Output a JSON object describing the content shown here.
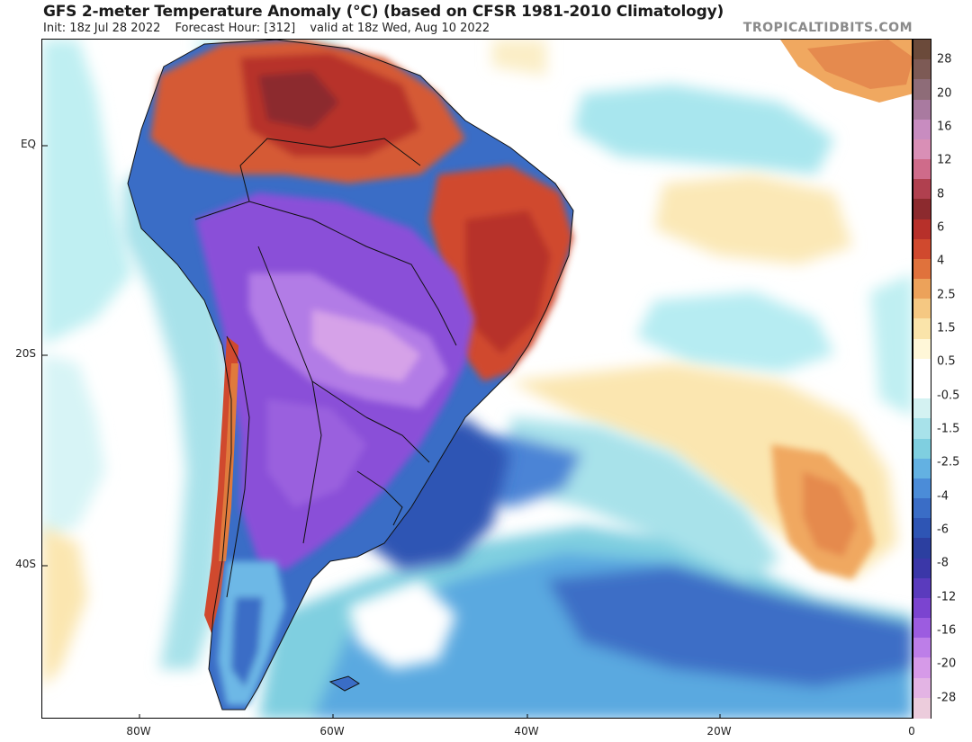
{
  "header": {
    "title": "GFS 2-meter Temperature Anomaly (°C) (based on CFSR 1981-2010 Climatology)",
    "init": "Init: 18z Jul 28 2022",
    "forecast_hour": "Forecast Hour: [312]",
    "valid": "valid at 18z Wed, Aug 10 2022",
    "brand": "TROPICALTIDBITS.COM"
  },
  "axes": {
    "lat_labels": [
      "EQ",
      "20S",
      "40S"
    ],
    "lon_labels": [
      "80W",
      "60W",
      "40W",
      "20W",
      "0"
    ]
  },
  "colorbar": {
    "labels": [
      "28",
      "20",
      "16",
      "12",
      "8",
      "6",
      "4",
      "2.5",
      "1.5",
      "0.5",
      "-0.5",
      "-1.5",
      "-2.5",
      "-4",
      "-6",
      "-8",
      "-12",
      "-16",
      "-20",
      "-28"
    ],
    "colors": [
      "#6b4a3a",
      "#7d5a55",
      "#8e6c78",
      "#a97aa0",
      "#c88cc0",
      "#d98fb6",
      "#cf6b8a",
      "#b0404f",
      "#8c2a2e",
      "#b7302a",
      "#d0492e",
      "#e0723c",
      "#eca25a",
      "#f5c882",
      "#fae4aa",
      "#fff7d8",
      "#ffffff",
      "#ffffff",
      "#d4f2f2",
      "#a8e2ea",
      "#7fcfe0",
      "#63b1e2",
      "#4b8cd8",
      "#3a6dc6",
      "#2e55b4",
      "#2c3fa0",
      "#3b37a8",
      "#5a3bbd",
      "#7b44d0",
      "#9c5ce0",
      "#bd7ee8",
      "#d69ae8",
      "#e3b4e4",
      "#ecccdc"
    ]
  },
  "map": {
    "colors": {
      "ocean": "#ffffff",
      "pale_cyan": "#bfeff2",
      "cyan": "#8fdcea",
      "light_blue": "#6db8e6",
      "blue": "#4b84d6",
      "deep_blue": "#3556b6",
      "purple": "#8a50d8",
      "light_purple": "#b27ce6",
      "pink_purple": "#d6a2e8",
      "warm_orange": "#e68b4a",
      "warm_red": "#c2442c",
      "pale_yellow": "#fbe6b0",
      "orange_patch": "#f0a860"
    }
  }
}
